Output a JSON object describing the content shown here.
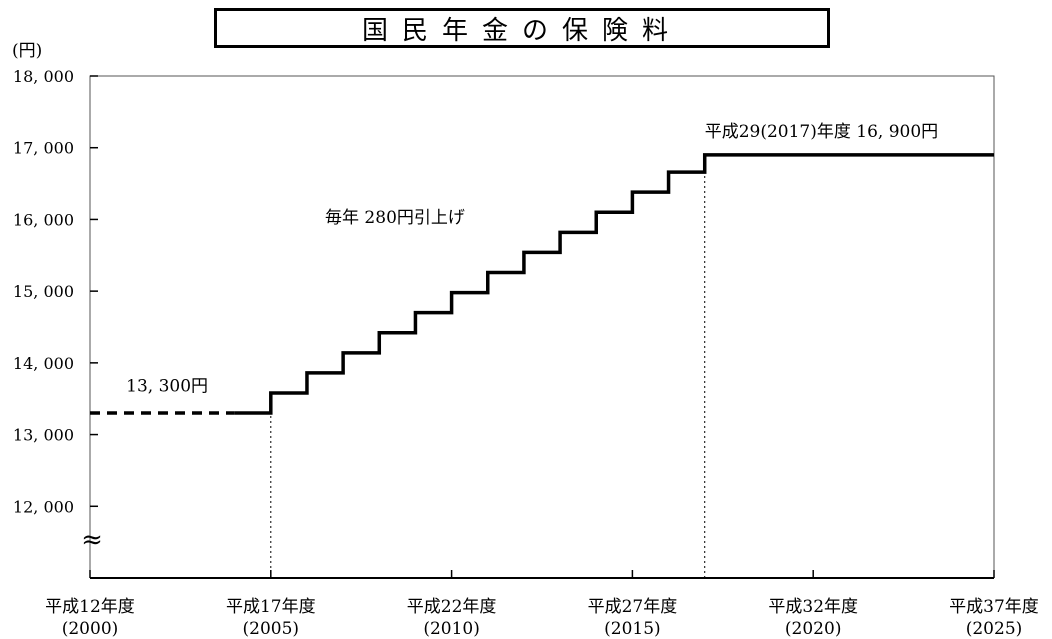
{
  "chart_data": {
    "type": "line",
    "title": "国民年金の保険料",
    "ylabel": "(円)",
    "xlabel": "",
    "ylim": [
      11000,
      18000
    ],
    "xlim": [
      2000,
      2025
    ],
    "y_ticks": [
      {
        "value": 12000,
        "label": "12, 000"
      },
      {
        "value": 13000,
        "label": "13, 000"
      },
      {
        "value": 14000,
        "label": "14, 000"
      },
      {
        "value": 15000,
        "label": "15, 000"
      },
      {
        "value": 16000,
        "label": "16, 000"
      },
      {
        "value": 17000,
        "label": "17, 000"
      },
      {
        "value": 18000,
        "label": "18, 000"
      }
    ],
    "x_ticks": [
      {
        "value": 2000,
        "line1": "平成12年度",
        "line2": "(2000)"
      },
      {
        "value": 2005,
        "line1": "平成17年度",
        "line2": "(2005)"
      },
      {
        "value": 2010,
        "line1": "平成22年度",
        "line2": "(2010)"
      },
      {
        "value": 2015,
        "line1": "平成27年度",
        "line2": "(2015)"
      },
      {
        "value": 2020,
        "line1": "平成32年度",
        "line2": "(2020)"
      },
      {
        "value": 2025,
        "line1": "平成37年度",
        "line2": "(2025)"
      }
    ],
    "axis_break_symbol": "≈",
    "series": [
      {
        "style": "dashed",
        "points": [
          [
            2000,
            13300
          ],
          [
            2004,
            13300
          ]
        ]
      },
      {
        "style": "step",
        "points": [
          [
            2004,
            13300
          ],
          [
            2005,
            13580
          ],
          [
            2006,
            13860
          ],
          [
            2007,
            14140
          ],
          [
            2008,
            14420
          ],
          [
            2009,
            14700
          ],
          [
            2010,
            14980
          ],
          [
            2011,
            15260
          ],
          [
            2012,
            15540
          ],
          [
            2013,
            15820
          ],
          [
            2014,
            16100
          ],
          [
            2015,
            16380
          ],
          [
            2016,
            16660
          ],
          [
            2017,
            16900
          ],
          [
            2025,
            16900
          ]
        ]
      }
    ],
    "reference_lines": [
      {
        "x": 2005,
        "y_from": 11000,
        "y_to": 13300
      },
      {
        "x": 2017,
        "y_from": 11000,
        "y_to": 16660
      }
    ],
    "annotations": [
      {
        "text": "13, 300円",
        "x": 2001,
        "y": 13600
      },
      {
        "text": "毎年 280円引上げ",
        "x": 2006.5,
        "y": 15950
      },
      {
        "text": "平成29(2017)年度  16, 900円",
        "x": 2017,
        "y": 17150
      }
    ]
  }
}
